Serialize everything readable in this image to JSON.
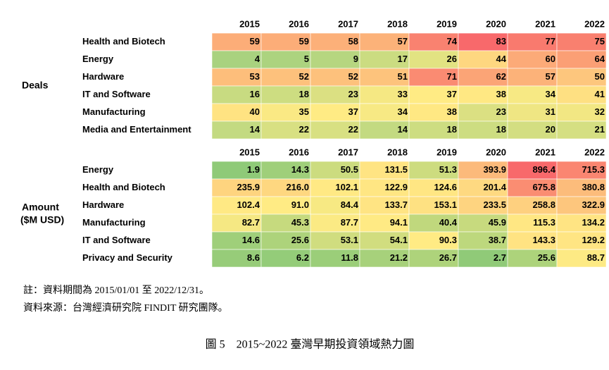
{
  "chart_data": [
    {
      "type": "heatmap",
      "title": [
        "Deals"
      ],
      "columns": [
        "2015",
        "2016",
        "2017",
        "2018",
        "2019",
        "2020",
        "2021",
        "2022"
      ],
      "rows": [
        "Health and Biotech",
        "Energy",
        "Hardware",
        "IT and Software",
        "Manufacturing",
        "Media and Entertainment"
      ],
      "values": [
        [
          59,
          59,
          58,
          57,
          74,
          83,
          77,
          75
        ],
        [
          4,
          5,
          9,
          17,
          26,
          44,
          60,
          64
        ],
        [
          53,
          52,
          52,
          51,
          71,
          62,
          57,
          50
        ],
        [
          16,
          18,
          23,
          33,
          37,
          38,
          34,
          41
        ],
        [
          40,
          35,
          37,
          34,
          38,
          23,
          31,
          32
        ],
        [
          14,
          22,
          22,
          14,
          18,
          18,
          20,
          21
        ]
      ],
      "color_scale": {
        "low": "#a9d27f",
        "mid": "#ffeb84",
        "high": "#f8696b"
      }
    },
    {
      "type": "heatmap",
      "title": [
        "Amount",
        "($M USD)"
      ],
      "columns": [
        "2015",
        "2016",
        "2017",
        "2018",
        "2019",
        "2020",
        "2021",
        "2022"
      ],
      "rows": [
        "Energy",
        "Health and Biotech",
        "Hardware",
        "Manufacturing",
        "IT and Software",
        "Privacy and Security"
      ],
      "values": [
        [
          1.9,
          14.3,
          50.5,
          131.5,
          51.3,
          393.9,
          896.4,
          715.3
        ],
        [
          235.9,
          216.0,
          102.1,
          122.9,
          124.6,
          201.4,
          675.8,
          380.8
        ],
        [
          102.4,
          91.0,
          84.4,
          133.7,
          153.1,
          233.5,
          258.8,
          322.9
        ],
        [
          82.7,
          45.3,
          87.7,
          94.1,
          40.4,
          45.9,
          115.3,
          134.2
        ],
        [
          14.6,
          25.6,
          53.1,
          54.1,
          90.3,
          38.7,
          143.3,
          129.2
        ],
        [
          8.6,
          6.2,
          11.8,
          21.2,
          26.7,
          2.7,
          25.6,
          88.7
        ]
      ],
      "value_labels": [
        [
          "1.9",
          "14.3",
          "50.5",
          "131.5",
          "51.3",
          "393.9",
          "896.4",
          "715.3"
        ],
        [
          "235.9",
          "216.0",
          "102.1",
          "122.9",
          "124.6",
          "201.4",
          "675.8",
          "380.8"
        ],
        [
          "102.4",
          "91.0",
          "84.4",
          "133.7",
          "153.1",
          "233.5",
          "258.8",
          "322.9"
        ],
        [
          "82.7",
          "45.3",
          "87.7",
          "94.1",
          "40.4",
          "45.9",
          "115.3",
          "134.2"
        ],
        [
          "14.6",
          "25.6",
          "53.1",
          "54.1",
          "90.3",
          "38.7",
          "143.3",
          "129.2"
        ],
        [
          "8.6",
          "6.2",
          "11.8",
          "21.2",
          "26.7",
          "2.7",
          "25.6",
          "88.7"
        ]
      ],
      "color_scale": {
        "low": "#8fca78",
        "mid": "#ffeb84",
        "high": "#f8696b"
      }
    }
  ],
  "notes": [
    "註：資料期間為 2015/01/01 至 2022/12/31。",
    "資料來源：台灣經濟研究院 FINDIT 研究團隊。"
  ],
  "caption": "圖 5　2015~2022 臺灣早期投資領域熱力圖"
}
